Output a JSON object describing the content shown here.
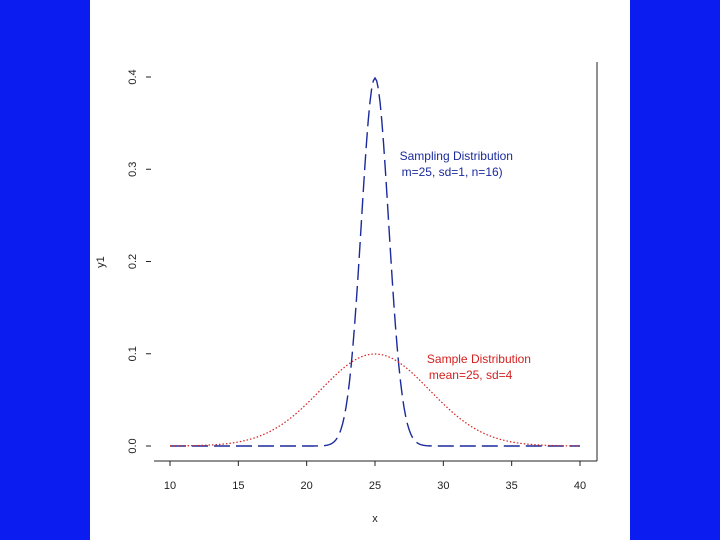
{
  "chart_data": {
    "type": "line",
    "xlabel": "x",
    "ylabel": "y1",
    "xlim": [
      10,
      40
    ],
    "ylim": [
      0,
      0.4
    ],
    "xticks": [
      "10",
      "15",
      "20",
      "25",
      "30",
      "35",
      "40"
    ],
    "yticks": [
      "0.0",
      "0.1",
      "0.2",
      "0.3",
      "0.4"
    ],
    "grid": false,
    "series": [
      {
        "mean": 25,
        "sd": 1,
        "color": "#1a2a9c",
        "style": "long-dash",
        "x": [
          10,
          20,
          21,
          22,
          22.5,
          23,
          23.5,
          24,
          24.5,
          25,
          25.5,
          26,
          26.5,
          27,
          27.5,
          28,
          29,
          30,
          40
        ],
        "y": [
          0,
          0,
          0.0001,
          0.0044,
          0.0175,
          0.054,
          0.1295,
          0.242,
          0.352,
          0.399,
          0.352,
          0.242,
          0.1295,
          0.054,
          0.0175,
          0.0044,
          0.0001,
          0,
          0
        ]
      },
      {
        "mean": 25,
        "sd": 4,
        "color": "#d42020",
        "style": "dotted",
        "x": [
          10,
          12,
          14,
          16,
          18,
          20,
          22,
          24,
          25,
          26,
          28,
          30,
          32,
          34,
          36,
          38,
          40
        ],
        "y": [
          0.0002,
          0.001,
          0.0039,
          0.0099,
          0.0216,
          0.0457,
          0.0753,
          0.0967,
          0.0997,
          0.0967,
          0.0753,
          0.0457,
          0.0216,
          0.0099,
          0.0039,
          0.001,
          0.0002
        ]
      }
    ],
    "annotations": [
      {
        "lines": [
          "Sampling Distribution",
          "m=25, sd=1, n=16)"
        ],
        "color": "#1a2a9c",
        "at_x": 26.8,
        "at_y": 0.31
      },
      {
        "lines": [
          "Sample Distribution",
          "mean=25, sd=4"
        ],
        "color": "#d42020",
        "at_x": 28.8,
        "at_y": 0.09
      }
    ]
  }
}
